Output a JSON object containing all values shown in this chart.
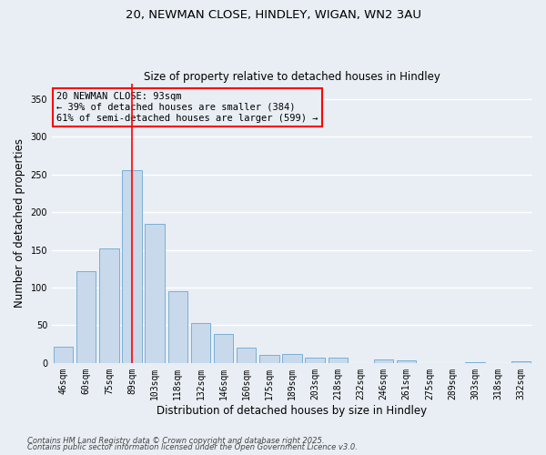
{
  "title1": "20, NEWMAN CLOSE, HINDLEY, WIGAN, WN2 3AU",
  "title2": "Size of property relative to detached houses in Hindley",
  "xlabel": "Distribution of detached houses by size in Hindley",
  "ylabel": "Number of detached properties",
  "categories": [
    "46sqm",
    "60sqm",
    "75sqm",
    "89sqm",
    "103sqm",
    "118sqm",
    "132sqm",
    "146sqm",
    "160sqm",
    "175sqm",
    "189sqm",
    "203sqm",
    "218sqm",
    "232sqm",
    "246sqm",
    "261sqm",
    "275sqm",
    "289sqm",
    "303sqm",
    "318sqm",
    "332sqm"
  ],
  "values": [
    22,
    122,
    152,
    255,
    184,
    95,
    53,
    38,
    20,
    11,
    12,
    7,
    7,
    0,
    5,
    4,
    0,
    0,
    1,
    0,
    2
  ],
  "bar_color": "#c8d9ec",
  "bar_edge_color": "#7aafd4",
  "red_line_x": 3.0,
  "annotation_text": "20 NEWMAN CLOSE: 93sqm\n← 39% of detached houses are smaller (384)\n61% of semi-detached houses are larger (599) →",
  "ylim": [
    0,
    370
  ],
  "yticks": [
    0,
    50,
    100,
    150,
    200,
    250,
    300,
    350
  ],
  "footnote1": "Contains HM Land Registry data © Crown copyright and database right 2025.",
  "footnote2": "Contains public sector information licensed under the Open Government Licence v3.0.",
  "background_color": "#e8eef4",
  "grid_color": "#ffffff",
  "title_fontsize": 9.5,
  "subtitle_fontsize": 8.5,
  "axis_label_fontsize": 8.5,
  "tick_fontsize": 7,
  "annot_fontsize": 7.5,
  "footnote_fontsize": 6
}
